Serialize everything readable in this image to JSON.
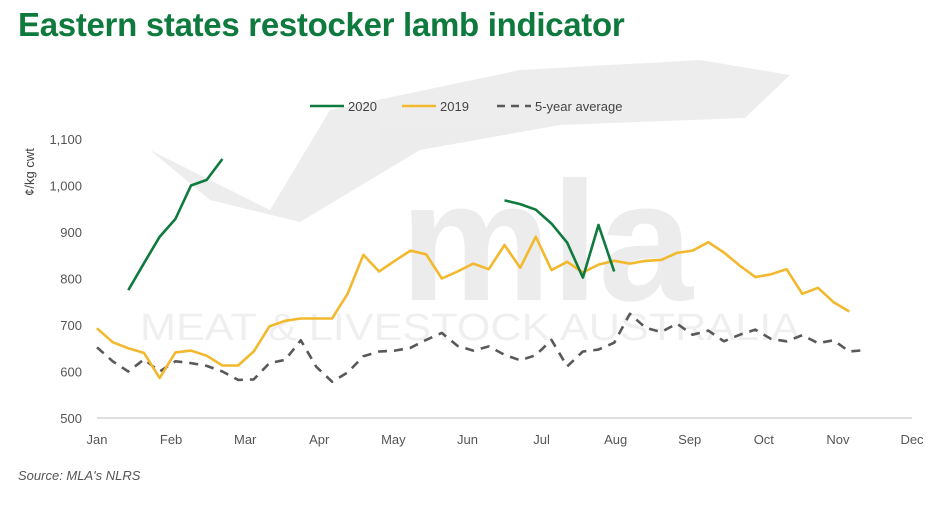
{
  "title": "Eastern states restocker lamb indicator",
  "source": "Source: MLA's NLRS",
  "watermark": {
    "brand": "mla",
    "tagline": "MEAT & LIVESTOCK AUSTRALIA"
  },
  "colors": {
    "c2020": "#0e7a3e",
    "c2019": "#f2b82e",
    "avg": "#595959",
    "axis": "#bfbfbf",
    "title": "#0e7a3e"
  },
  "chart_data": {
    "type": "line",
    "ylabel": "¢/kg cwt",
    "xlabel": "",
    "ylim": [
      500,
      1100
    ],
    "yticks": [
      500,
      600,
      700,
      800,
      900,
      1000,
      1100
    ],
    "ytick_labels": [
      "500",
      "600",
      "700",
      "800",
      "900",
      "1,000",
      "1,100"
    ],
    "months": [
      "Jan",
      "Feb",
      "Mar",
      "Apr",
      "May",
      "Jun",
      "Jul",
      "Aug",
      "Sep",
      "Oct",
      "Nov",
      "Dec"
    ],
    "x_unit": "week",
    "legend_position": "top",
    "grid": false,
    "series": [
      {
        "name": "2020",
        "style": "solid",
        "color": "#0e7a3e",
        "points": [
          [
            3,
            775
          ],
          [
            4,
            833
          ],
          [
            5,
            890
          ],
          [
            6,
            928
          ],
          [
            7,
            1000
          ],
          [
            8,
            1012
          ],
          [
            9,
            1057
          ]
        ]
      },
      {
        "name": "",
        "style": "solid",
        "color": "#0e7a3e",
        "points": [
          [
            27,
            968
          ],
          [
            28,
            960
          ],
          [
            29,
            948
          ],
          [
            30,
            918
          ],
          [
            31,
            877
          ],
          [
            32,
            802
          ],
          [
            33,
            915
          ],
          [
            34,
            815
          ]
        ]
      },
      {
        "name": "2019",
        "style": "solid",
        "color": "#f2b82e",
        "points": [
          [
            1,
            693
          ],
          [
            2,
            663
          ],
          [
            3,
            650
          ],
          [
            4,
            640
          ],
          [
            5,
            586
          ],
          [
            6,
            641
          ],
          [
            7,
            645
          ],
          [
            8,
            634
          ],
          [
            9,
            613
          ],
          [
            10,
            613
          ],
          [
            11,
            643
          ],
          [
            12,
            697
          ],
          [
            13,
            709
          ],
          [
            14,
            714
          ],
          [
            15,
            714
          ],
          [
            16,
            714
          ],
          [
            17,
            768
          ],
          [
            18,
            851
          ],
          [
            19,
            815
          ],
          [
            20,
            838
          ],
          [
            21,
            860
          ],
          [
            22,
            852
          ],
          [
            23,
            800
          ],
          [
            24,
            815
          ],
          [
            25,
            832
          ],
          [
            26,
            820
          ],
          [
            27,
            872
          ],
          [
            28,
            823
          ],
          [
            29,
            890
          ],
          [
            30,
            818
          ],
          [
            31,
            836
          ],
          [
            32,
            813
          ],
          [
            33,
            830
          ],
          [
            34,
            838
          ],
          [
            35,
            832
          ],
          [
            36,
            838
          ],
          [
            37,
            840
          ],
          [
            38,
            855
          ],
          [
            39,
            860
          ],
          [
            40,
            878
          ],
          [
            41,
            856
          ],
          [
            42,
            828
          ],
          [
            43,
            803
          ],
          [
            44,
            809
          ],
          [
            45,
            820
          ],
          [
            46,
            767
          ],
          [
            47,
            780
          ],
          [
            48,
            749
          ],
          [
            49,
            729
          ]
        ]
      },
      {
        "name": "5-year average",
        "style": "dashed",
        "color": "#595959",
        "points": [
          [
            1,
            652
          ],
          [
            2,
            622
          ],
          [
            3,
            600
          ],
          [
            4,
            626
          ],
          [
            5,
            600
          ],
          [
            6,
            622
          ],
          [
            7,
            618
          ],
          [
            8,
            612
          ],
          [
            9,
            600
          ],
          [
            10,
            582
          ],
          [
            11,
            583
          ],
          [
            12,
            618
          ],
          [
            13,
            625
          ],
          [
            14,
            667
          ],
          [
            15,
            610
          ],
          [
            16,
            578
          ],
          [
            17,
            598
          ],
          [
            18,
            633
          ],
          [
            19,
            643
          ],
          [
            20,
            645
          ],
          [
            21,
            651
          ],
          [
            22,
            668
          ],
          [
            23,
            683
          ],
          [
            24,
            655
          ],
          [
            25,
            645
          ],
          [
            26,
            654
          ],
          [
            27,
            636
          ],
          [
            28,
            624
          ],
          [
            29,
            635
          ],
          [
            30,
            668
          ],
          [
            31,
            611
          ],
          [
            32,
            643
          ],
          [
            33,
            647
          ],
          [
            34,
            662
          ],
          [
            35,
            724
          ],
          [
            36,
            694
          ],
          [
            37,
            685
          ],
          [
            38,
            703
          ],
          [
            39,
            679
          ],
          [
            40,
            688
          ],
          [
            41,
            665
          ],
          [
            42,
            679
          ],
          [
            43,
            690
          ],
          [
            44,
            670
          ],
          [
            45,
            665
          ],
          [
            46,
            678
          ],
          [
            47,
            661
          ],
          [
            48,
            667
          ],
          [
            49,
            643
          ],
          [
            50,
            646
          ]
        ]
      }
    ]
  }
}
